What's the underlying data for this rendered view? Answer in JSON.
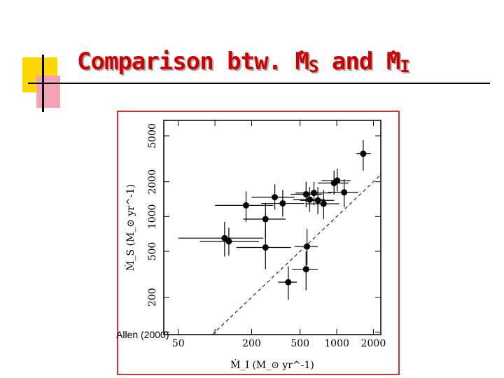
{
  "slide": {
    "title_prefix": "Comparison btw. ",
    "title_ms": "M",
    "title_ms_sub": "S",
    "title_and": " and ",
    "title_mi": "M",
    "title_mi_sub": "I",
    "citation": "Allen (2000)"
  },
  "colors": {
    "title": "#cc0000",
    "frame": "#cc3333",
    "deco_yellow": "#ffd700",
    "deco_pink": "#f2a3b5"
  },
  "chart_data": {
    "type": "scatter",
    "scale": "log-log",
    "xlabel": "Ṁ_I (M_⊙ yr^-1)",
    "ylabel": "Ṁ_S (M_⊙ yr^-1)",
    "xticks": [
      {
        "value": 50,
        "label": "50"
      },
      {
        "value": 200,
        "label": "200"
      },
      {
        "value": 500,
        "label": "500"
      },
      {
        "value": 1000,
        "label": "1000"
      },
      {
        "value": 2000,
        "label": "2000"
      }
    ],
    "xticks_unlabeled": [
      100
    ],
    "yticks": [
      {
        "value": 200,
        "label": "200"
      },
      {
        "value": 500,
        "label": "500"
      },
      {
        "value": 1000,
        "label": "1000"
      },
      {
        "value": 2000,
        "label": "2000"
      },
      {
        "value": 5000,
        "label": "5000"
      }
    ],
    "yticks_unlabeled": [
      100
    ],
    "xlim": [
      38,
      2300
    ],
    "ylim": [
      95,
      6800
    ],
    "reference_line": "y = x",
    "points": [
      {
        "x": 1650,
        "y": 3500,
        "xlo": 1450,
        "xhi": 1900,
        "ylo": 2500,
        "yhi": 4600
      },
      {
        "x": 1010,
        "y": 2050,
        "xlo": 750,
        "xhi": 1300,
        "ylo": 1650,
        "yhi": 2600
      },
      {
        "x": 950,
        "y": 1950,
        "xlo": 700,
        "xhi": 1250,
        "ylo": 1550,
        "yhi": 2500
      },
      {
        "x": 1150,
        "y": 1620,
        "xlo": 850,
        "xhi": 1500,
        "ylo": 1200,
        "yhi": 2100
      },
      {
        "x": 650,
        "y": 1600,
        "xlo": 460,
        "xhi": 900,
        "ylo": 1250,
        "yhi": 2000
      },
      {
        "x": 560,
        "y": 1560,
        "xlo": 420,
        "xhi": 760,
        "ylo": 1200,
        "yhi": 2000
      },
      {
        "x": 600,
        "y": 1400,
        "xlo": 440,
        "xhi": 800,
        "ylo": 1100,
        "yhi": 1800
      },
      {
        "x": 700,
        "y": 1380,
        "xlo": 500,
        "xhi": 950,
        "ylo": 1050,
        "yhi": 1800
      },
      {
        "x": 780,
        "y": 1290,
        "xlo": 560,
        "xhi": 1050,
        "ylo": 950,
        "yhi": 1700
      },
      {
        "x": 310,
        "y": 1470,
        "xlo": 200,
        "xhi": 450,
        "ylo": 1150,
        "yhi": 1900
      },
      {
        "x": 360,
        "y": 1300,
        "xlo": 240,
        "xhi": 540,
        "ylo": 1000,
        "yhi": 1700
      },
      {
        "x": 180,
        "y": 1250,
        "xlo": 100,
        "xhi": 300,
        "ylo": 900,
        "yhi": 1650
      },
      {
        "x": 260,
        "y": 950,
        "xlo": 170,
        "xhi": 380,
        "ylo": 650,
        "yhi": 1300
      },
      {
        "x": 120,
        "y": 650,
        "xlo": 50,
        "xhi": 250,
        "ylo": 450,
        "yhi": 900
      },
      {
        "x": 130,
        "y": 610,
        "xlo": 75,
        "xhi": 230,
        "ylo": 460,
        "yhi": 800
      },
      {
        "x": 260,
        "y": 540,
        "xlo": 150,
        "xhi": 420,
        "ylo": 350,
        "yhi": 800
      },
      {
        "x": 570,
        "y": 550,
        "xlo": 450,
        "xhi": 700,
        "ylo": 380,
        "yhi": 780
      },
      {
        "x": 560,
        "y": 350,
        "xlo": 430,
        "xhi": 700,
        "ylo": 230,
        "yhi": 500
      },
      {
        "x": 400,
        "y": 270,
        "xlo": 330,
        "xhi": 470,
        "ylo": 190,
        "yhi": 370
      }
    ]
  }
}
